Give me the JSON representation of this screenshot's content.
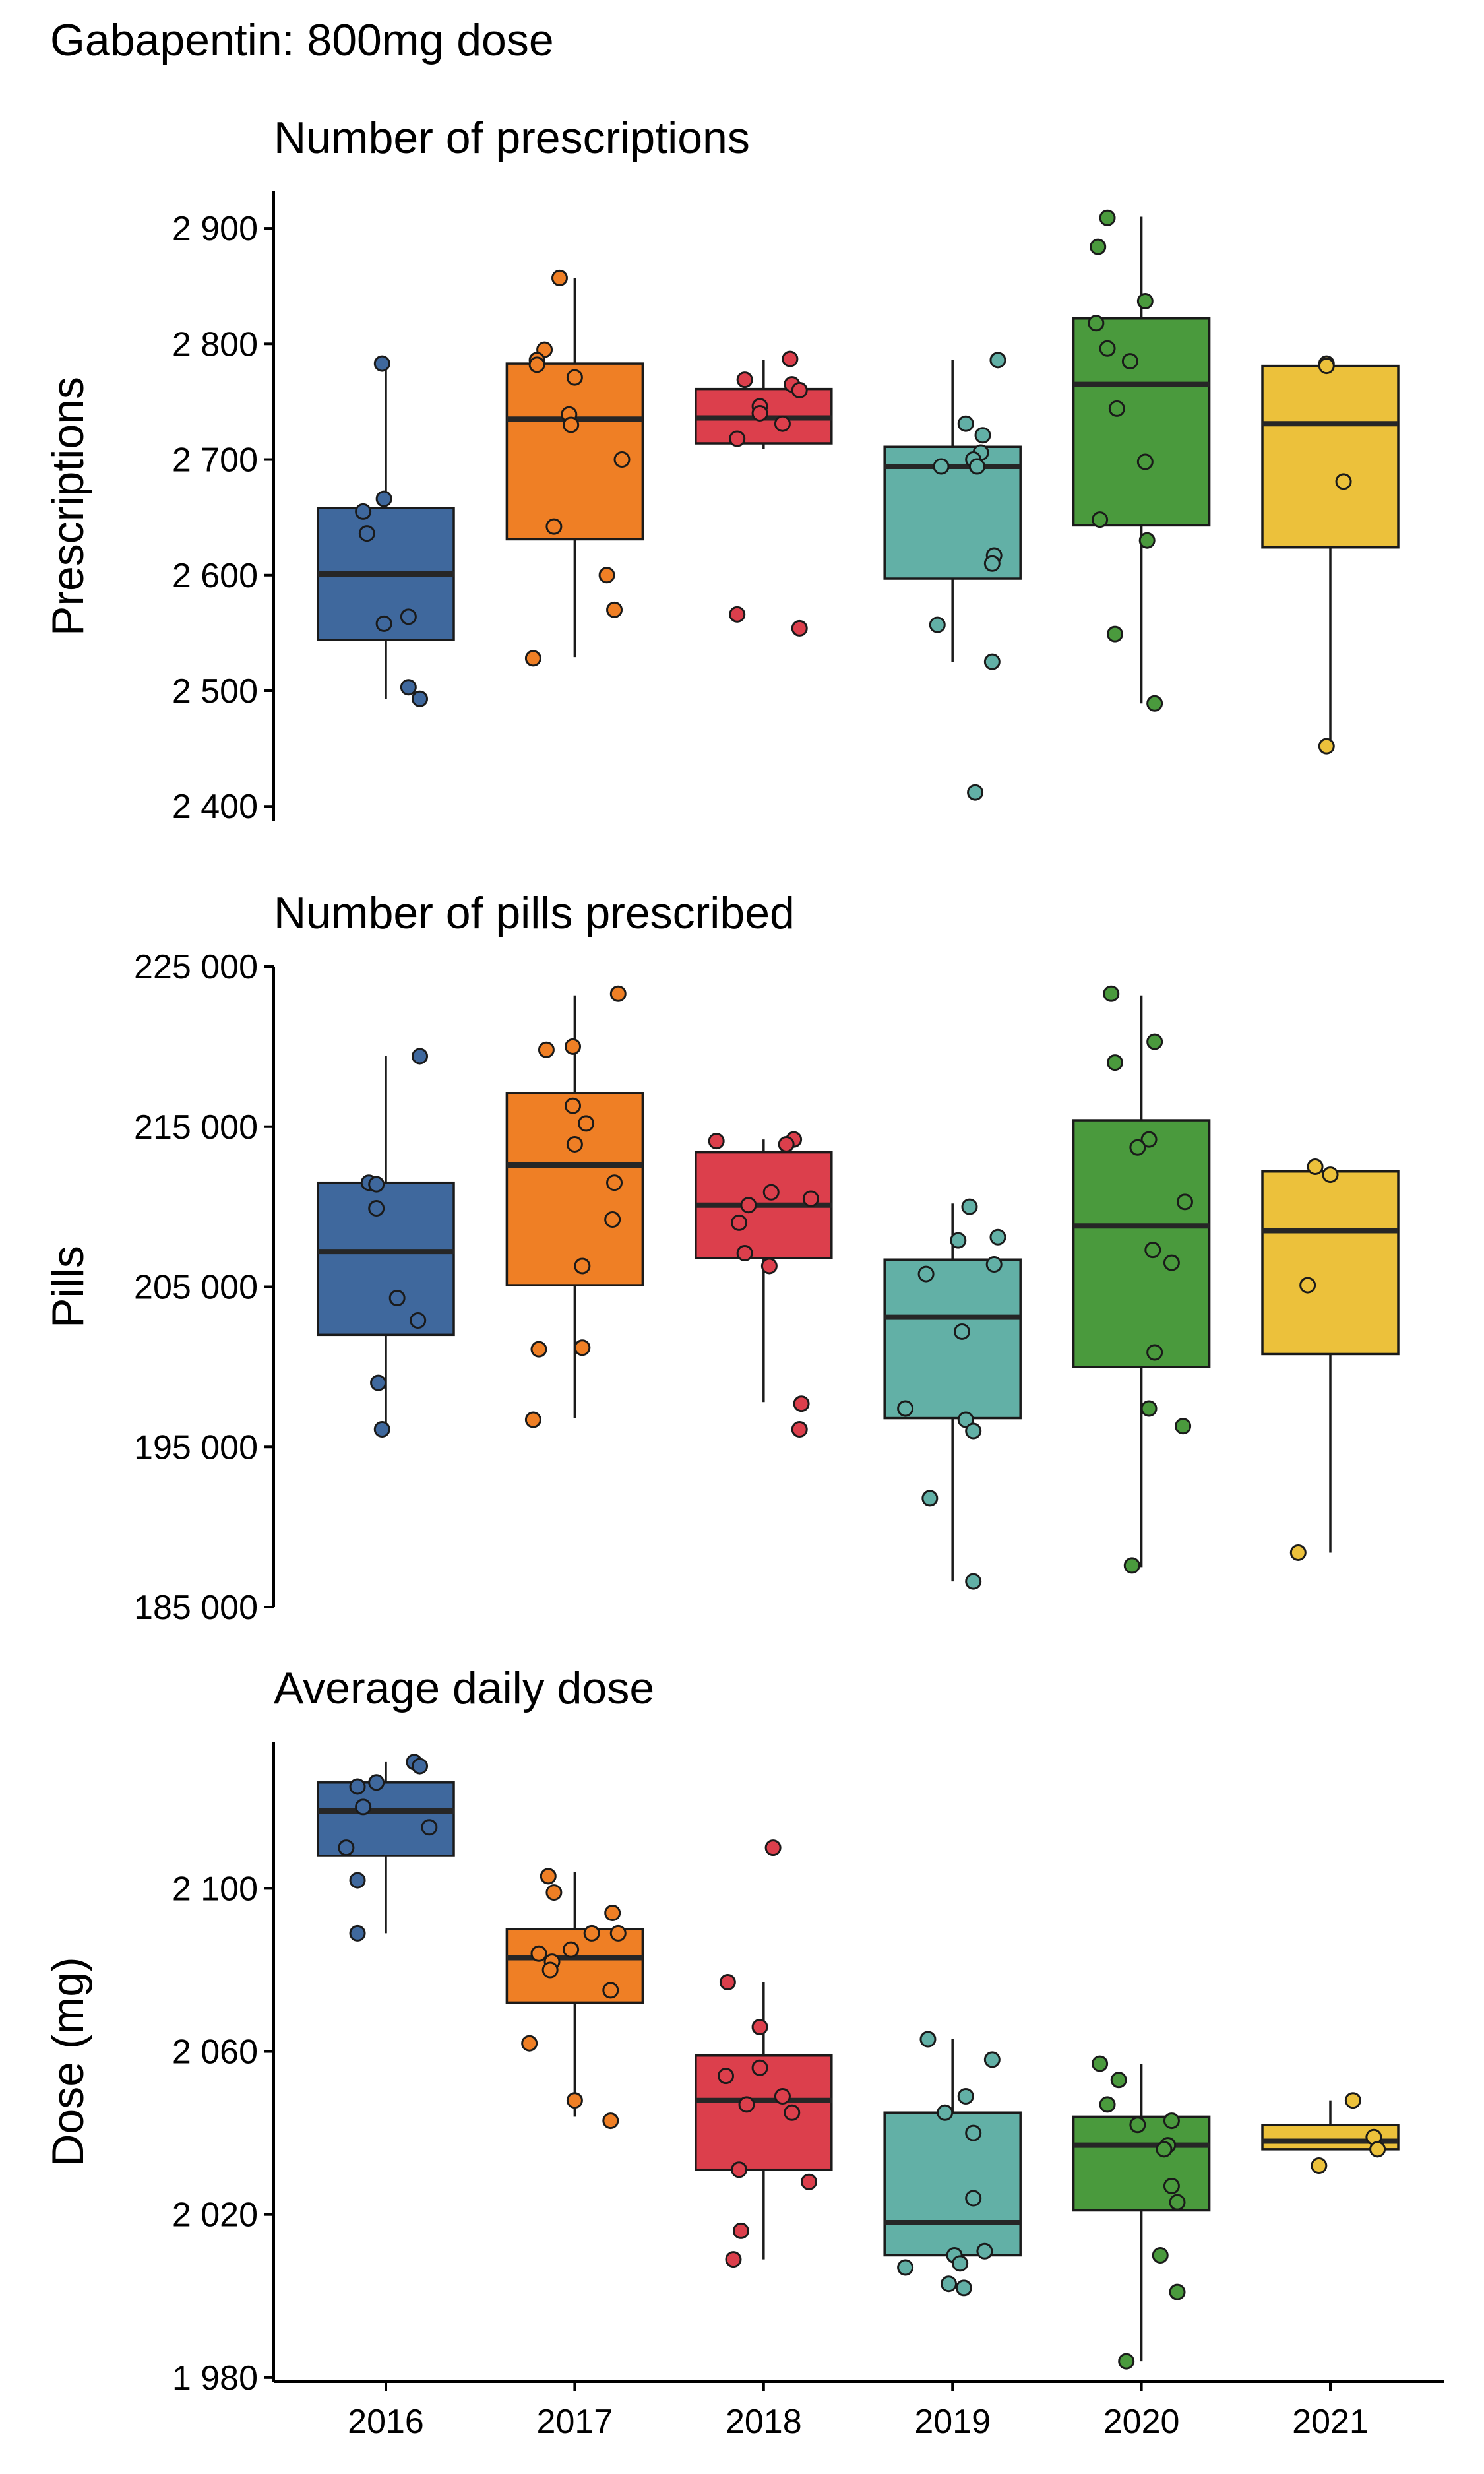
{
  "title": "Gabapentin: 800mg dose",
  "colors": {
    "2016": "#3f689d",
    "2017": "#ef7f25",
    "2018": "#dc3f4c",
    "2019": "#62b0a6",
    "2020": "#4a9a3d",
    "2021": "#ecc13b",
    "median_line": "#262626",
    "outline": "#1a1a1a"
  },
  "chart_data": [
    {
      "type": "boxplot",
      "title": "Number of prescriptions",
      "ylabel": "Prescriptions",
      "xlabel": "",
      "categories": [
        "2016",
        "2017",
        "2018",
        "2019",
        "2020",
        "2021"
      ],
      "ylim": [
        2387,
        2932
      ],
      "yticks": [
        2400,
        2500,
        2600,
        2700,
        2800,
        2900
      ],
      "ytick_labels": [
        "2 400",
        "2 500",
        "2 600",
        "2 700",
        "2 800",
        "2 900"
      ],
      "show_x_axis": false,
      "grid": false,
      "boxes": [
        {
          "category": "2016",
          "whisker_low": 2493,
          "q1": 2544,
          "median": 2601,
          "q3": 2658,
          "whisker_high": 2783
        },
        {
          "category": "2017",
          "whisker_low": 2529,
          "q1": 2631,
          "median": 2735,
          "q3": 2783,
          "whisker_high": 2857
        },
        {
          "category": "2018",
          "whisker_low": 2709,
          "q1": 2714,
          "median": 2736,
          "q3": 2761,
          "whisker_high": 2786
        },
        {
          "category": "2019",
          "whisker_low": 2525,
          "q1": 2597,
          "median": 2694,
          "q3": 2711,
          "whisker_high": 2786
        },
        {
          "category": "2020",
          "whisker_low": 2489,
          "q1": 2643,
          "median": 2765,
          "q3": 2822,
          "whisker_high": 2910
        },
        {
          "category": "2021",
          "whisker_low": 2452,
          "q1": 2624,
          "median": 2731,
          "q3": 2781,
          "whisker_high": 2785
        }
      ],
      "points": [
        {
          "category": "2016",
          "values": [
            2783,
            2666,
            2655,
            2636,
            2564,
            2558,
            2503,
            2493
          ],
          "jitter": [
            -0.02,
            -0.01,
            -0.12,
            -0.1,
            0.12,
            -0.01,
            0.12,
            0.18
          ]
        },
        {
          "category": "2017",
          "values": [
            2857,
            2795,
            2786,
            2782,
            2771,
            2739,
            2730,
            2700,
            2642,
            2600,
            2570,
            2528
          ],
          "jitter": [
            -0.08,
            -0.16,
            -0.2,
            -0.2,
            0.0,
            -0.03,
            -0.02,
            0.25,
            -0.11,
            0.17,
            0.21,
            -0.22
          ]
        },
        {
          "category": "2018",
          "values": [
            2787,
            2769,
            2765,
            2760,
            2746,
            2740,
            2731,
            2718,
            2566,
            2554
          ],
          "jitter": [
            0.14,
            -0.1,
            0.15,
            0.19,
            -0.02,
            -0.02,
            0.1,
            -0.14,
            -0.14,
            0.19
          ]
        },
        {
          "category": "2019",
          "values": [
            2786,
            2731,
            2721,
            2706,
            2700,
            2694,
            2694,
            2617,
            2610,
            2557,
            2525,
            2412
          ],
          "jitter": [
            0.24,
            0.07,
            0.16,
            0.15,
            0.11,
            -0.06,
            0.13,
            0.22,
            0.21,
            -0.08,
            0.21,
            0.12
          ]
        },
        {
          "category": "2020",
          "values": [
            2909,
            2884,
            2837,
            2818,
            2796,
            2785,
            2744,
            2698,
            2648,
            2630,
            2549,
            2489
          ],
          "jitter": [
            -0.18,
            -0.23,
            0.02,
            -0.24,
            -0.18,
            -0.06,
            -0.13,
            0.02,
            -0.22,
            0.03,
            -0.14,
            0.07
          ]
        },
        {
          "category": "2021",
          "values": [
            2783,
            2781,
            2681,
            2452
          ],
          "jitter": [
            -0.02,
            -0.02,
            0.07,
            -0.02
          ]
        }
      ]
    },
    {
      "type": "boxplot",
      "title": "Number of pills prescribed",
      "ylabel": "Pills",
      "xlabel": "",
      "categories": [
        "2016",
        "2017",
        "2018",
        "2019",
        "2020",
        "2021"
      ],
      "ylim": [
        185000,
        225000
      ],
      "yticks": [
        185000,
        195000,
        205000,
        215000,
        225000
      ],
      "ytick_labels": [
        "185 000",
        "195 000",
        "205 000",
        "215 000",
        "225 000"
      ],
      "show_x_axis": false,
      "grid": false,
      "boxes": [
        {
          "category": "2016",
          "whisker_low": 196000,
          "q1": 202000,
          "median": 207200,
          "q3": 211500,
          "whisker_high": 219400
        },
        {
          "category": "2017",
          "whisker_low": 196800,
          "q1": 205100,
          "median": 212600,
          "q3": 217100,
          "whisker_high": 223200
        },
        {
          "category": "2018",
          "whisker_low": 197800,
          "q1": 206800,
          "median": 210100,
          "q3": 213400,
          "whisker_high": 214200
        },
        {
          "category": "2019",
          "whisker_low": 186600,
          "q1": 196800,
          "median": 203100,
          "q3": 206700,
          "whisker_high": 210200
        },
        {
          "category": "2020",
          "whisker_low": 187500,
          "q1": 200000,
          "median": 208800,
          "q3": 215400,
          "whisker_high": 223200
        },
        {
          "category": "2021",
          "whisker_low": 188400,
          "q1": 200800,
          "median": 208500,
          "q3": 212200,
          "whisker_high": 212500
        }
      ],
      "points": [
        {
          "category": "2016",
          "values": [
            219400,
            211500,
            211400,
            209900,
            204300,
            202900,
            199000,
            196100
          ],
          "jitter": [
            0.18,
            -0.09,
            -0.05,
            -0.05,
            0.06,
            0.17,
            -0.04,
            -0.02
          ]
        },
        {
          "category": "2017",
          "values": [
            223300,
            220000,
            219800,
            216300,
            215200,
            213900,
            211500,
            209200,
            206300,
            201200,
            201100,
            196700
          ],
          "jitter": [
            0.23,
            -0.01,
            -0.15,
            -0.01,
            0.06,
            0.0,
            0.21,
            0.2,
            0.04,
            0.04,
            -0.19,
            -0.22
          ]
        },
        {
          "category": "2018",
          "values": [
            214200,
            214100,
            213900,
            210900,
            210500,
            210100,
            209000,
            207100,
            206300,
            197700,
            196100
          ],
          "jitter": [
            0.16,
            -0.25,
            0.12,
            0.04,
            0.25,
            -0.08,
            -0.13,
            -0.1,
            0.03,
            0.2,
            0.19
          ]
        },
        {
          "category": "2019",
          "values": [
            210000,
            208100,
            207900,
            206400,
            205800,
            202200,
            197400,
            196700,
            196000,
            191800,
            186600
          ],
          "jitter": [
            0.09,
            0.24,
            0.03,
            0.22,
            -0.14,
            0.05,
            -0.25,
            0.07,
            0.11,
            -0.12,
            0.11
          ]
        },
        {
          "category": "2020",
          "values": [
            223300,
            220300,
            219000,
            214200,
            213700,
            210300,
            207300,
            206500,
            200900,
            197400,
            196300,
            187600
          ],
          "jitter": [
            -0.16,
            0.07,
            -0.14,
            0.04,
            -0.02,
            0.23,
            0.06,
            0.16,
            0.07,
            0.04,
            0.22,
            -0.05
          ]
        },
        {
          "category": "2021",
          "values": [
            212500,
            212000,
            205100,
            188400
          ],
          "jitter": [
            -0.08,
            0.0,
            -0.12,
            -0.17
          ]
        }
      ]
    },
    {
      "type": "boxplot",
      "title": "Average daily dose",
      "ylabel": "Dose (mg)",
      "xlabel": "",
      "categories": [
        "2016",
        "2017",
        "2018",
        "2019",
        "2020",
        "2021"
      ],
      "ylim": [
        1979,
        2136
      ],
      "yticks": [
        1980,
        2020,
        2060,
        2100
      ],
      "ytick_labels": [
        "1 980",
        "2 020",
        "2 060",
        "2 100"
      ],
      "show_x_axis": true,
      "grid": false,
      "boxes": [
        {
          "category": "2016",
          "whisker_low": 2089,
          "q1": 2108,
          "median": 2119,
          "q3": 2126,
          "whisker_high": 2131
        },
        {
          "category": "2017",
          "whisker_low": 2044,
          "q1": 2072,
          "median": 2083,
          "q3": 2090,
          "whisker_high": 2104
        },
        {
          "category": "2018",
          "whisker_low": 2009,
          "q1": 2031,
          "median": 2048,
          "q3": 2059,
          "whisker_high": 2077
        },
        {
          "category": "2019",
          "whisker_low": 2009,
          "q1": 2010,
          "median": 2018,
          "q3": 2045,
          "whisker_high": 2063
        },
        {
          "category": "2020",
          "whisker_low": 1984,
          "q1": 2021,
          "median": 2037,
          "q3": 2044,
          "whisker_high": 2057
        },
        {
          "category": "2021",
          "whisker_low": 2036,
          "q1": 2036,
          "median": 2038,
          "q3": 2042,
          "whisker_high": 2048
        }
      ],
      "points": [
        {
          "category": "2016",
          "values": [
            2131,
            2130,
            2126,
            2125,
            2120,
            2115,
            2110,
            2102,
            2089
          ],
          "jitter": [
            0.15,
            0.18,
            -0.05,
            -0.15,
            -0.12,
            0.23,
            -0.21,
            -0.15,
            -0.15
          ]
        },
        {
          "category": "2017",
          "values": [
            2103,
            2099,
            2094,
            2089,
            2089,
            2085,
            2084,
            2082,
            2080,
            2075,
            2062,
            2048,
            2043
          ],
          "jitter": [
            -0.14,
            -0.11,
            0.2,
            0.09,
            0.23,
            -0.02,
            -0.19,
            -0.12,
            -0.13,
            0.19,
            -0.24,
            0.0,
            0.19
          ]
        },
        {
          "category": "2018",
          "values": [
            2110,
            2077,
            2066,
            2056,
            2054,
            2049,
            2047,
            2045,
            2031,
            2028,
            2016,
            2009
          ],
          "jitter": [
            0.05,
            -0.19,
            -0.02,
            -0.02,
            -0.2,
            0.1,
            -0.09,
            0.15,
            -0.13,
            0.24,
            -0.12,
            -0.16
          ]
        },
        {
          "category": "2019",
          "values": [
            2063,
            2058,
            2049,
            2045,
            2040,
            2024,
            2011,
            2010,
            2008,
            2007,
            2003,
            2002
          ],
          "jitter": [
            -0.13,
            0.21,
            0.07,
            -0.04,
            0.11,
            0.11,
            0.17,
            0.01,
            0.04,
            -0.25,
            -0.02,
            0.06
          ]
        },
        {
          "category": "2020",
          "values": [
            2057,
            2053,
            2047,
            2043,
            2042,
            2037,
            2036,
            2027,
            2023,
            2010,
            2001,
            1984
          ],
          "jitter": [
            -0.22,
            -0.12,
            -0.18,
            0.16,
            -0.02,
            0.14,
            0.12,
            0.16,
            0.19,
            0.1,
            0.19,
            -0.08
          ]
        },
        {
          "category": "2021",
          "values": [
            2048,
            2039,
            2036,
            2032
          ],
          "jitter": [
            0.12,
            0.23,
            0.25,
            -0.06
          ]
        }
      ]
    }
  ]
}
